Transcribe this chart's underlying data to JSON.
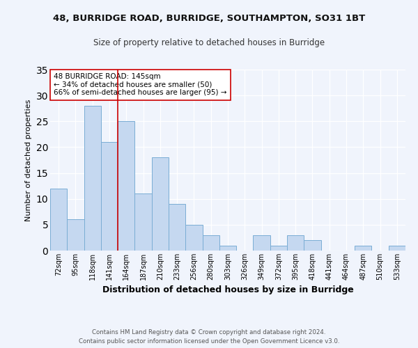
{
  "title1": "48, BURRIDGE ROAD, BURRIDGE, SOUTHAMPTON, SO31 1BT",
  "title2": "Size of property relative to detached houses in Burridge",
  "xlabel": "Distribution of detached houses by size in Burridge",
  "ylabel": "Number of detached properties",
  "categories": [
    "72sqm",
    "95sqm",
    "118sqm",
    "141sqm",
    "164sqm",
    "187sqm",
    "210sqm",
    "233sqm",
    "256sqm",
    "280sqm",
    "303sqm",
    "326sqm",
    "349sqm",
    "372sqm",
    "395sqm",
    "418sqm",
    "441sqm",
    "464sqm",
    "487sqm",
    "510sqm",
    "533sqm"
  ],
  "values": [
    12,
    6,
    28,
    21,
    25,
    11,
    18,
    9,
    5,
    3,
    1,
    0,
    3,
    1,
    3,
    2,
    0,
    0,
    1,
    0,
    1
  ],
  "bar_color": "#c5d8f0",
  "bar_edge_color": "#7aadd4",
  "vline_x": 3.5,
  "vline_color": "#cc0000",
  "annotation_text": "48 BURRIDGE ROAD: 145sqm\n← 34% of detached houses are smaller (50)\n66% of semi-detached houses are larger (95) →",
  "annotation_box_color": "#ffffff",
  "annotation_box_edge": "#cc0000",
  "ylim": [
    0,
    35
  ],
  "yticks": [
    0,
    5,
    10,
    15,
    20,
    25,
    30,
    35
  ],
  "footer": "Contains HM Land Registry data © Crown copyright and database right 2024.\nContains public sector information licensed under the Open Government Licence v3.0.",
  "bg_color": "#f0f4fc",
  "plot_bg_color": "#f0f4fc"
}
